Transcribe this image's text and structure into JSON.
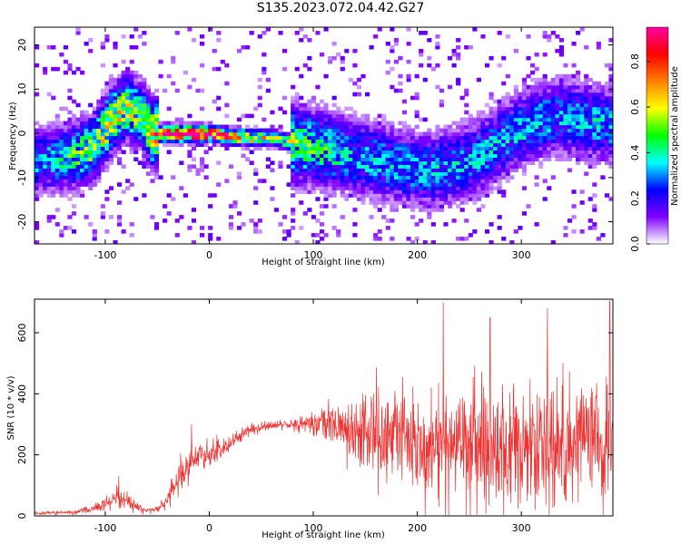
{
  "title": "S135.2023.072.04.42.G27",
  "chart_data": [
    {
      "type": "heatmap",
      "xlabel": "Height of straight line (km)",
      "ylabel": "Frequency (Hz)",
      "xlim": [
        -168,
        388
      ],
      "ylim": [
        -25,
        24
      ],
      "xticks": [
        -100,
        0,
        100,
        200,
        300
      ],
      "yticks": [
        -20,
        -10,
        0,
        10,
        20
      ],
      "colorbar": {
        "label": "Normalized spectral amplitude",
        "range": [
          0,
          0.95
        ],
        "ticks": [
          0.0,
          0.2,
          0.4,
          0.6,
          0.8
        ],
        "colors": [
          "#ffffff",
          "#7f00ff",
          "#0000ff",
          "#00ffff",
          "#00ff00",
          "#ffff00",
          "#ff8000",
          "#ff0000",
          "#ff00a0"
        ]
      },
      "ridge": {
        "x": [
          -150,
          -130,
          -110,
          -95,
          -80,
          -65,
          -55,
          -40,
          -20,
          0,
          20,
          40,
          60,
          80,
          100,
          120,
          140,
          160,
          180,
          200,
          220,
          240,
          260,
          280,
          300,
          320,
          340,
          360,
          380
        ],
        "f": [
          -6,
          -5,
          -3,
          3,
          6,
          4,
          0,
          0,
          0,
          0,
          -0.5,
          -1,
          -1,
          -2,
          -3,
          -4,
          -5,
          -6,
          -7,
          -8,
          -8,
          -7,
          -5,
          -2,
          1,
          3,
          4,
          3,
          2
        ],
        "peak": [
          0.3,
          0.4,
          0.5,
          0.55,
          0.5,
          0.45,
          0.6,
          0.9,
          0.95,
          0.9,
          0.75,
          0.6,
          0.5,
          0.45,
          0.4,
          0.35,
          0.3,
          0.3,
          0.3,
          0.3,
          0.3,
          0.3,
          0.3,
          0.3,
          0.3,
          0.3,
          0.3,
          0.3,
          0.3
        ]
      }
    },
    {
      "type": "line",
      "xlabel": "Height of straight line (km)",
      "ylabel": "SNR (10 * v/v)",
      "xlim": [
        -168,
        388
      ],
      "ylim": [
        0,
        710
      ],
      "xticks": [
        -100,
        0,
        100,
        200,
        300
      ],
      "yticks": [
        0,
        200,
        400,
        600
      ],
      "color": "#ee3333",
      "envelope": {
        "x": [
          -168,
          -130,
          -110,
          -100,
          -90,
          -80,
          -70,
          -60,
          -50,
          -40,
          -30,
          -20,
          -10,
          0,
          20,
          40,
          60,
          80,
          100,
          120,
          140,
          160,
          180,
          200,
          220,
          240,
          260,
          280,
          300,
          320,
          340,
          360,
          388
        ],
        "mean": [
          8,
          12,
          25,
          40,
          60,
          50,
          30,
          18,
          22,
          55,
          120,
          170,
          200,
          200,
          240,
          285,
          295,
          300,
          305,
          300,
          280,
          270,
          260,
          245,
          240,
          235,
          230,
          230,
          225,
          225,
          225,
          225,
          225
        ],
        "spread": [
          4,
          6,
          12,
          20,
          30,
          25,
          15,
          8,
          10,
          25,
          50,
          60,
          50,
          40,
          25,
          15,
          15,
          20,
          40,
          70,
          110,
          140,
          160,
          170,
          180,
          180,
          190,
          190,
          190,
          190,
          190,
          190,
          190
        ]
      },
      "peaks": [
        {
          "x": -87,
          "y": 130
        },
        {
          "x": -17,
          "y": 300
        },
        {
          "x": 225,
          "y": 700
        },
        {
          "x": 270,
          "y": 650
        },
        {
          "x": 325,
          "y": 680
        },
        {
          "x": 385,
          "y": 705
        }
      ]
    }
  ]
}
